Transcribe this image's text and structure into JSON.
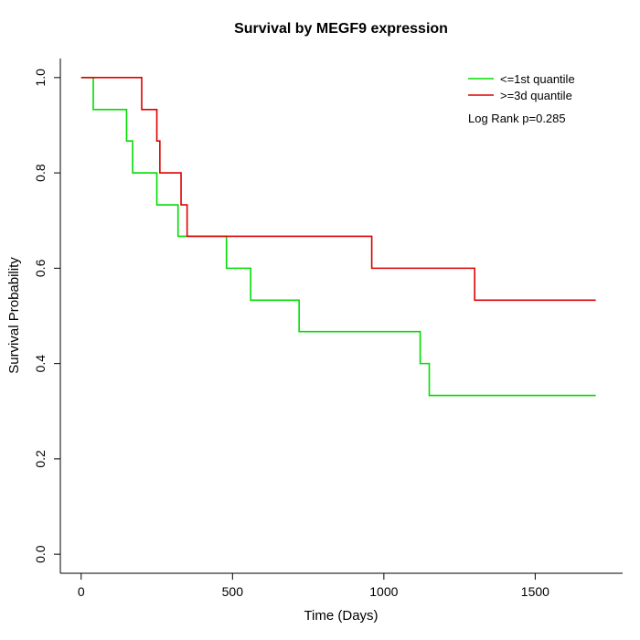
{
  "chart_data": {
    "type": "line",
    "subtype": "kaplan-meier-step",
    "title": "Survival by MEGF9 expression",
    "xlabel": "Time (Days)",
    "ylabel": "Survival Probability",
    "xlim": [
      0,
      1720
    ],
    "ylim": [
      0,
      1
    ],
    "x_ticks": [
      0,
      500,
      1000,
      1500
    ],
    "y_ticks": [
      0.0,
      0.2,
      0.4,
      0.6,
      0.8,
      1.0
    ],
    "grid": false,
    "legend_position": "top-right",
    "annotation": "Log Rank p=0.285",
    "series": [
      {
        "name": "<=1st quantile",
        "color": "#00dd00",
        "points": [
          [
            0,
            1.0
          ],
          [
            40,
            0.933
          ],
          [
            150,
            0.867
          ],
          [
            170,
            0.8
          ],
          [
            250,
            0.733
          ],
          [
            320,
            0.667
          ],
          [
            480,
            0.6
          ],
          [
            560,
            0.533
          ],
          [
            720,
            0.467
          ],
          [
            1120,
            0.4
          ],
          [
            1150,
            0.333
          ],
          [
            1700,
            0.333
          ]
        ]
      },
      {
        "name": ">=3d quantile",
        "color": "#dd0000",
        "points": [
          [
            0,
            1.0
          ],
          [
            200,
            0.933
          ],
          [
            250,
            0.867
          ],
          [
            260,
            0.8
          ],
          [
            330,
            0.733
          ],
          [
            350,
            0.667
          ],
          [
            960,
            0.6
          ],
          [
            1300,
            0.533
          ],
          [
            1700,
            0.533
          ]
        ]
      }
    ]
  }
}
